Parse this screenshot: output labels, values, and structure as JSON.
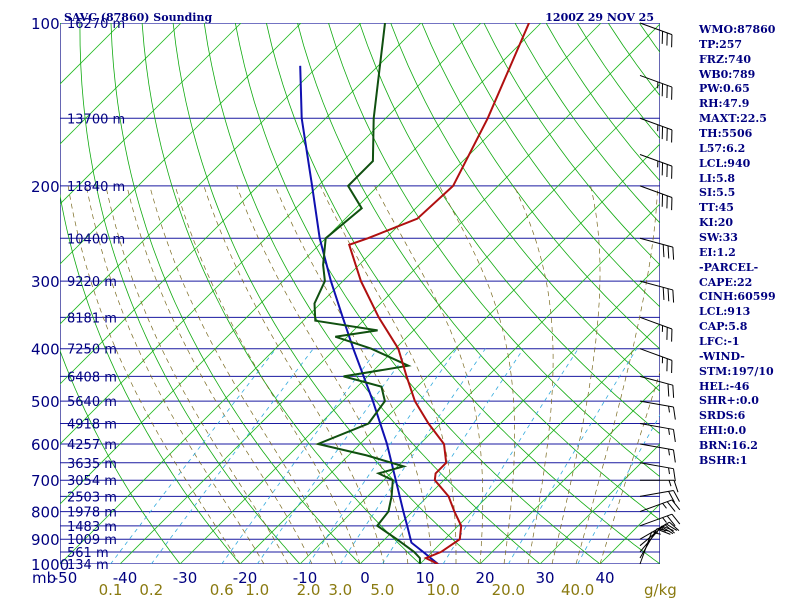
{
  "title_left": "SAVC (87860) Sounding",
  "title_right": "1200Z 29 NOV 25",
  "colors": {
    "frame": "#000080",
    "isobar": "#1a1aa0",
    "isotherm": "#22bb22",
    "dry_adiabat": "#11aa11",
    "moist_adiabat": "#7a6a20",
    "mixing_ratio": "#33aadd",
    "temperature": "#b01010",
    "dewpoint": "#105010",
    "parcel": "#1010b0",
    "wind": "#000000"
  },
  "stats": [
    "WMO:87860",
    "TP:257",
    "FRZ:740",
    "WB0:789",
    "PW:0.65",
    "RH:47.9",
    "MAXT:22.5",
    "TH:5506",
    "L57:6.2",
    "LCL:940",
    "LI:5.8",
    "SI:5.5",
    "TT:45",
    "KI:20",
    "SW:33",
    "EI:1.2",
    "-PARCEL-",
    "CAPE:22",
    "CINH:60599",
    "LCL:913",
    "CAP:5.8",
    "LFC:-1",
    "-WIND-",
    "STM:197/10",
    "HEL:-46",
    "SHR+:0.0",
    "SRDS:6",
    "EHI:0.0",
    "BRN:16.2",
    "BSHR:1"
  ],
  "chart_data": {
    "type": "skew-t",
    "xlabel": "mb",
    "mixing_ratio_unit": "g/kg",
    "pressure_range_hpa": [
      1000,
      100
    ],
    "temperature_range_c": [
      -50,
      50
    ],
    "pressure_ticks": [
      "100",
      "200",
      "300",
      "400",
      "500",
      "600",
      "700",
      "800",
      "900",
      "1000"
    ],
    "height_ticks": [
      {
        "p": 100,
        "label": "16270 m"
      },
      {
        "p": 150,
        "label": "13700 m"
      },
      {
        "p": 200,
        "label": "11840 m"
      },
      {
        "p": 250,
        "label": "10400 m"
      },
      {
        "p": 300,
        "label": "9220 m"
      },
      {
        "p": 350,
        "label": "8181 m"
      },
      {
        "p": 400,
        "label": "7250 m"
      },
      {
        "p": 450,
        "label": "6408 m"
      },
      {
        "p": 500,
        "label": "5640 m"
      },
      {
        "p": 550,
        "label": "4918 m"
      },
      {
        "p": 600,
        "label": "4257 m"
      },
      {
        "p": 650,
        "label": "3635 m"
      },
      {
        "p": 700,
        "label": "3054 m"
      },
      {
        "p": 750,
        "label": "2503 m"
      },
      {
        "p": 800,
        "label": "1978 m"
      },
      {
        "p": 850,
        "label": "1483 m"
      },
      {
        "p": 900,
        "label": "1009 m"
      },
      {
        "p": 950,
        "label": "561 m"
      },
      {
        "p": 1000,
        "label": "134 m"
      }
    ],
    "temperature_ticks": [
      "-50",
      "-40",
      "-30",
      "-20",
      "-10",
      "0",
      "10",
      "20",
      "30",
      "40"
    ],
    "mixing_ratio_ticks": [
      "0.1",
      "0.2",
      "0.6",
      "1.0",
      "2.0",
      "3.0",
      "5.0",
      "10.0",
      "20.0",
      "40.0"
    ],
    "temperature_profile": [
      {
        "p": 1000,
        "t": 13.0
      },
      {
        "p": 975,
        "t": 10.0
      },
      {
        "p": 950,
        "t": 11.5
      },
      {
        "p": 900,
        "t": 12.5
      },
      {
        "p": 850,
        "t": 10.5
      },
      {
        "p": 800,
        "t": 7.0
      },
      {
        "p": 750,
        "t": 3.5
      },
      {
        "p": 700,
        "t": -1.5
      },
      {
        "p": 680,
        "t": -2.5
      },
      {
        "p": 650,
        "t": -2.5
      },
      {
        "p": 600,
        "t": -6.0
      },
      {
        "p": 550,
        "t": -12.0
      },
      {
        "p": 500,
        "t": -18.0
      },
      {
        "p": 450,
        "t": -23.5
      },
      {
        "p": 400,
        "t": -29.5
      },
      {
        "p": 350,
        "t": -38.0
      },
      {
        "p": 300,
        "t": -47.0
      },
      {
        "p": 257,
        "t": -55.0
      },
      {
        "p": 250,
        "t": -53.0
      },
      {
        "p": 230,
        "t": -48.0
      },
      {
        "p": 200,
        "t": -47.5
      },
      {
        "p": 150,
        "t": -53.0
      },
      {
        "p": 100,
        "t": -62.0
      }
    ],
    "dewpoint_profile": [
      {
        "p": 1000,
        "t": 10.0
      },
      {
        "p": 975,
        "t": 9.0
      },
      {
        "p": 950,
        "t": 7.0
      },
      {
        "p": 900,
        "t": 2.0
      },
      {
        "p": 850,
        "t": -3.5
      },
      {
        "p": 800,
        "t": -4.0
      },
      {
        "p": 750,
        "t": -6.0
      },
      {
        "p": 700,
        "t": -8.5
      },
      {
        "p": 680,
        "t": -12.0
      },
      {
        "p": 660,
        "t": -9.0
      },
      {
        "p": 630,
        "t": -17.0
      },
      {
        "p": 600,
        "t": -27.0
      },
      {
        "p": 550,
        "t": -22.0
      },
      {
        "p": 500,
        "t": -23.0
      },
      {
        "p": 470,
        "t": -26.0
      },
      {
        "p": 450,
        "t": -34.0
      },
      {
        "p": 430,
        "t": -25.0
      },
      {
        "p": 400,
        "t": -34.0
      },
      {
        "p": 380,
        "t": -42.0
      },
      {
        "p": 370,
        "t": -36.0
      },
      {
        "p": 355,
        "t": -48.0
      },
      {
        "p": 330,
        "t": -51.0
      },
      {
        "p": 300,
        "t": -53.0
      },
      {
        "p": 280,
        "t": -56.0
      },
      {
        "p": 250,
        "t": -60.0
      },
      {
        "p": 220,
        "t": -59.0
      },
      {
        "p": 200,
        "t": -65.0
      },
      {
        "p": 180,
        "t": -65.0
      },
      {
        "p": 150,
        "t": -72.0
      },
      {
        "p": 100,
        "t": -86.0
      }
    ],
    "parcel_profile": [
      {
        "p": 1000,
        "t": 13.0
      },
      {
        "p": 950,
        "t": 8.5
      },
      {
        "p": 913,
        "t": 5.0
      },
      {
        "p": 850,
        "t": 1.5
      },
      {
        "p": 800,
        "t": -1.5
      },
      {
        "p": 700,
        "t": -8.0
      },
      {
        "p": 600,
        "t": -15.5
      },
      {
        "p": 500,
        "t": -25.0
      },
      {
        "p": 400,
        "t": -37.0
      },
      {
        "p": 350,
        "t": -44.0
      },
      {
        "p": 300,
        "t": -52.0
      },
      {
        "p": 250,
        "t": -61.0
      },
      {
        "p": 200,
        "t": -71.0
      },
      {
        "p": 150,
        "t": -84.0
      },
      {
        "p": 120,
        "t": -93.0
      }
    ],
    "wind_barbs": [
      {
        "p": 1000,
        "dir": 200,
        "spd": 5
      },
      {
        "p": 975,
        "dir": 210,
        "spd": 15
      },
      {
        "p": 950,
        "dir": 220,
        "spd": 20
      },
      {
        "p": 925,
        "dir": 230,
        "spd": 20
      },
      {
        "p": 900,
        "dir": 240,
        "spd": 25
      },
      {
        "p": 850,
        "dir": 250,
        "spd": 25
      },
      {
        "p": 800,
        "dir": 250,
        "spd": 25
      },
      {
        "p": 750,
        "dir": 260,
        "spd": 20
      },
      {
        "p": 700,
        "dir": 270,
        "spd": 15
      },
      {
        "p": 650,
        "dir": 280,
        "spd": 15
      },
      {
        "p": 600,
        "dir": 280,
        "spd": 15
      },
      {
        "p": 550,
        "dir": 280,
        "spd": 15
      },
      {
        "p": 500,
        "dir": 280,
        "spd": 15
      },
      {
        "p": 450,
        "dir": 285,
        "spd": 20
      },
      {
        "p": 400,
        "dir": 290,
        "spd": 25
      },
      {
        "p": 350,
        "dir": 290,
        "spd": 25
      },
      {
        "p": 300,
        "dir": 285,
        "spd": 30
      },
      {
        "p": 250,
        "dir": 285,
        "spd": 30
      },
      {
        "p": 200,
        "dir": 290,
        "spd": 30
      },
      {
        "p": 175,
        "dir": 290,
        "spd": 35
      },
      {
        "p": 150,
        "dir": 290,
        "spd": 35
      },
      {
        "p": 125,
        "dir": 290,
        "spd": 35
      },
      {
        "p": 100,
        "dir": 290,
        "spd": 30
      }
    ]
  }
}
